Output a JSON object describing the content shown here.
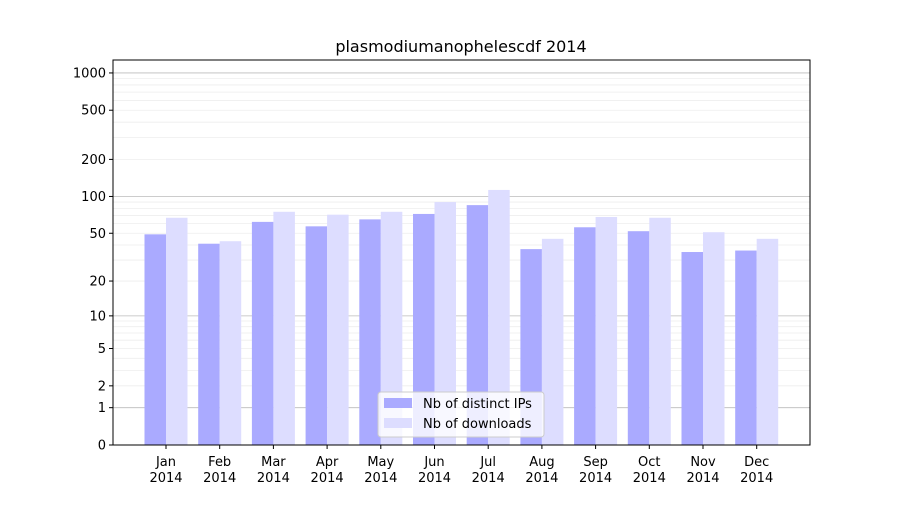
{
  "chart_data": {
    "type": "bar",
    "title": "plasmodiumanophelescdf 2014",
    "xlabel": "",
    "ylabel": "",
    "yscale": "log10(y+1)",
    "ylim": [
      0,
      1200
    ],
    "yticks": [
      0,
      1,
      2,
      5,
      10,
      20,
      50,
      100,
      200,
      500,
      1000
    ],
    "ytick_labels": [
      "0",
      "1",
      "2",
      "5",
      "10",
      "20",
      "50",
      "100",
      "200",
      "500",
      "1000"
    ],
    "grid": true,
    "legend_position": "bottom-center",
    "categories": [
      "Jan\n2014",
      "Feb\n2014",
      "Mar\n2014",
      "Apr\n2014",
      "May\n2014",
      "Jun\n2014",
      "Jul\n2014",
      "Aug\n2014",
      "Sep\n2014",
      "Oct\n2014",
      "Nov\n2014",
      "Dec\n2014"
    ],
    "series": [
      {
        "name": "Nb of distinct IPs",
        "color": "#aaaaff",
        "values": [
          49,
          41,
          62,
          57,
          65,
          72,
          85,
          37,
          56,
          52,
          35,
          36
        ]
      },
      {
        "name": "Nb of downloads",
        "color": "#ddddff",
        "values": [
          67,
          43,
          75,
          71,
          75,
          90,
          113,
          45,
          68,
          67,
          51,
          45
        ]
      }
    ]
  }
}
